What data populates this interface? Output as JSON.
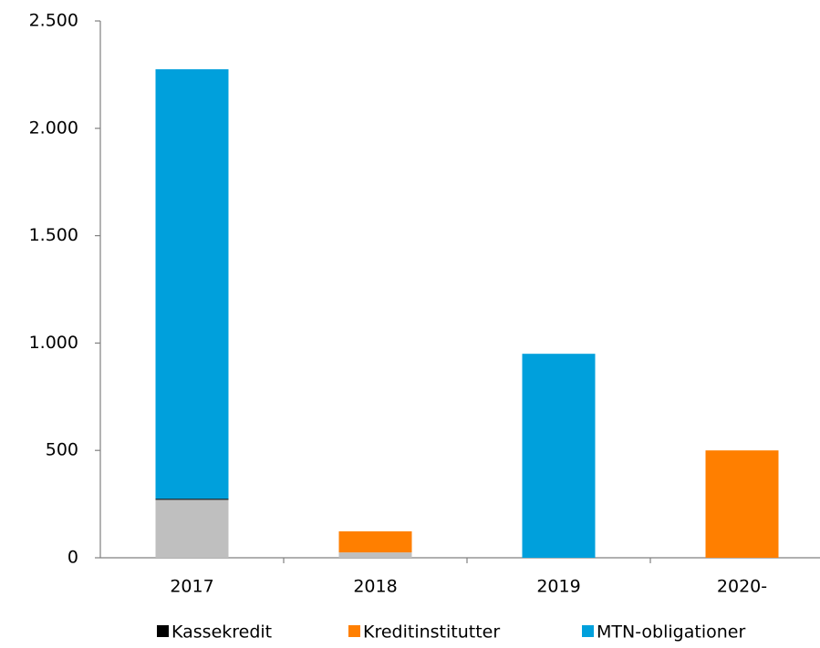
{
  "chart_data": {
    "type": "stacked_bar",
    "categories": [
      "2017",
      "2018",
      "2019",
      "2020-"
    ],
    "series": [
      {
        "color": "#bfbfbf",
        "values": [
          270,
          25,
          0,
          0
        ]
      },
      {
        "name": "Kassekredit",
        "color": "#000000",
        "values": [
          5,
          0,
          0,
          0
        ]
      },
      {
        "name": "Kreditinstitutter",
        "color": "#ff7f00",
        "values": [
          0,
          98,
          0,
          500
        ]
      },
      {
        "name": "MTN-obligationer",
        "color": "#00a0dc",
        "values": [
          2000,
          0,
          950,
          0
        ]
      }
    ],
    "ylim": [
      0,
      2500
    ],
    "yticks": [
      0,
      500,
      {
        "value": 1000,
        "label": "1.000"
      },
      {
        "value": 1500,
        "label": "1.500"
      },
      {
        "value": 2000,
        "label": "2.000"
      },
      {
        "value": 2500,
        "label": "2.500"
      }
    ],
    "grid": false,
    "legend": "bottom"
  }
}
